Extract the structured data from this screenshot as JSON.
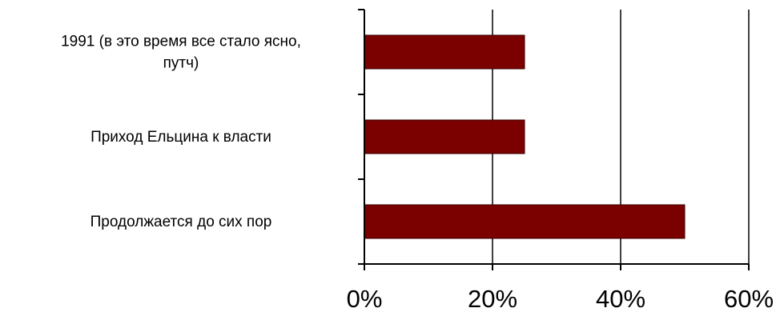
{
  "chart_data": {
    "type": "bar",
    "orientation": "horizontal",
    "title": "",
    "xlabel": "",
    "ylabel": "",
    "categories": [
      [
        "1991 (в это время все стало ясно,",
        "путч)"
      ],
      [
        "Приход Ельцина к власти"
      ],
      [
        "Продолжается до сих пор"
      ]
    ],
    "values": [
      25,
      25,
      50
    ],
    "xlim": [
      0,
      60
    ],
    "xticks": [
      0,
      20,
      40,
      60
    ],
    "xtick_labels": [
      "0%",
      "20%",
      "40%",
      "60%"
    ],
    "value_unit": "%",
    "grid": "vertical major gridlines",
    "legend": "none",
    "bar_color": "#7B0000",
    "axis_color": "#000000"
  }
}
